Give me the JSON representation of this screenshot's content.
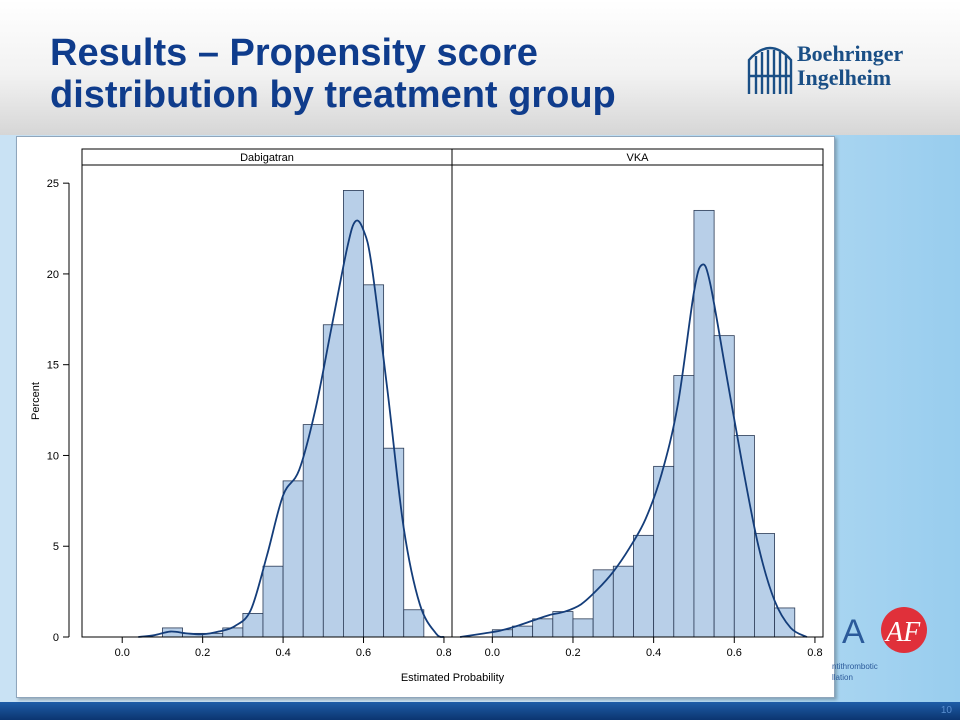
{
  "slide": {
    "title": "Results – Propensity score distribution by treatment group",
    "logo_text_line1": "Boehringer",
    "logo_text_line2": "Ingelheim",
    "af_logo_letter_a": "A",
    "af_logo_letters": "AF",
    "af_logo_caption_line1": "ntithrombotic",
    "af_logo_caption_line2": "llation",
    "page_number": "10",
    "colors": {
      "title": "#0f3c8c",
      "bar_fill": "#b8cfe8",
      "bar_stroke": "#2a3a55",
      "density_line": "#143d7a",
      "footer": "#0b3570",
      "af_red": "#e0303a"
    }
  },
  "chart_data": {
    "type": "bar",
    "subtype": "histogram-with-density",
    "xlabel": "Estimated Probability",
    "ylabel": "Percent",
    "ylim": [
      0,
      26
    ],
    "yticks": [
      0,
      5,
      10,
      15,
      20,
      25
    ],
    "bin_width": 0.05,
    "grid": false,
    "panels": [
      {
        "name": "Dabigatran",
        "xlim": [
          -0.1,
          0.82
        ],
        "xticks": [
          "0.0",
          "0.2",
          "0.4",
          "0.6",
          "0.8"
        ],
        "bins": [
          {
            "x0": 0.1,
            "value": 0.5
          },
          {
            "x0": 0.15,
            "value": 0.2
          },
          {
            "x0": 0.2,
            "value": 0.2
          },
          {
            "x0": 0.25,
            "value": 0.5
          },
          {
            "x0": 0.3,
            "value": 1.3
          },
          {
            "x0": 0.35,
            "value": 3.9
          },
          {
            "x0": 0.4,
            "value": 8.6
          },
          {
            "x0": 0.45,
            "value": 11.7
          },
          {
            "x0": 0.5,
            "value": 17.2
          },
          {
            "x0": 0.55,
            "value": 24.6
          },
          {
            "x0": 0.6,
            "value": 19.4
          },
          {
            "x0": 0.65,
            "value": 10.4
          },
          {
            "x0": 0.7,
            "value": 1.5
          }
        ],
        "density": [
          [
            0.04,
            0.0
          ],
          [
            0.08,
            0.1
          ],
          [
            0.12,
            0.3
          ],
          [
            0.16,
            0.2
          ],
          [
            0.2,
            0.15
          ],
          [
            0.24,
            0.3
          ],
          [
            0.28,
            0.6
          ],
          [
            0.32,
            1.5
          ],
          [
            0.36,
            4.5
          ],
          [
            0.4,
            7.8
          ],
          [
            0.44,
            9.2
          ],
          [
            0.48,
            12.5
          ],
          [
            0.52,
            17.0
          ],
          [
            0.56,
            21.5
          ],
          [
            0.58,
            22.9
          ],
          [
            0.6,
            22.4
          ],
          [
            0.62,
            20.5
          ],
          [
            0.66,
            13.5
          ],
          [
            0.7,
            6.0
          ],
          [
            0.74,
            1.8
          ],
          [
            0.78,
            0.2
          ],
          [
            0.8,
            0.0
          ]
        ]
      },
      {
        "name": "VKA",
        "xlim": [
          -0.1,
          0.82
        ],
        "xticks": [
          "0.0",
          "0.2",
          "0.4",
          "0.6",
          "0.8"
        ],
        "bins": [
          {
            "x0": 0.0,
            "value": 0.4
          },
          {
            "x0": 0.05,
            "value": 0.6
          },
          {
            "x0": 0.1,
            "value": 1.0
          },
          {
            "x0": 0.15,
            "value": 1.4
          },
          {
            "x0": 0.2,
            "value": 1.0
          },
          {
            "x0": 0.25,
            "value": 3.7
          },
          {
            "x0": 0.3,
            "value": 3.9
          },
          {
            "x0": 0.35,
            "value": 5.6
          },
          {
            "x0": 0.4,
            "value": 9.4
          },
          {
            "x0": 0.45,
            "value": 14.4
          },
          {
            "x0": 0.5,
            "value": 23.5
          },
          {
            "x0": 0.55,
            "value": 16.6
          },
          {
            "x0": 0.6,
            "value": 11.1
          },
          {
            "x0": 0.65,
            "value": 5.7
          },
          {
            "x0": 0.7,
            "value": 1.6
          }
        ],
        "density": [
          [
            -0.08,
            0.0
          ],
          [
            -0.02,
            0.2
          ],
          [
            0.02,
            0.35
          ],
          [
            0.06,
            0.6
          ],
          [
            0.1,
            0.9
          ],
          [
            0.14,
            1.2
          ],
          [
            0.18,
            1.4
          ],
          [
            0.22,
            1.8
          ],
          [
            0.26,
            2.6
          ],
          [
            0.3,
            3.6
          ],
          [
            0.34,
            4.9
          ],
          [
            0.38,
            6.5
          ],
          [
            0.42,
            9.0
          ],
          [
            0.46,
            12.8
          ],
          [
            0.5,
            19.0
          ],
          [
            0.52,
            20.5
          ],
          [
            0.54,
            19.5
          ],
          [
            0.58,
            14.5
          ],
          [
            0.62,
            9.5
          ],
          [
            0.66,
            5.0
          ],
          [
            0.7,
            2.0
          ],
          [
            0.74,
            0.5
          ],
          [
            0.78,
            0.0
          ]
        ]
      }
    ]
  }
}
